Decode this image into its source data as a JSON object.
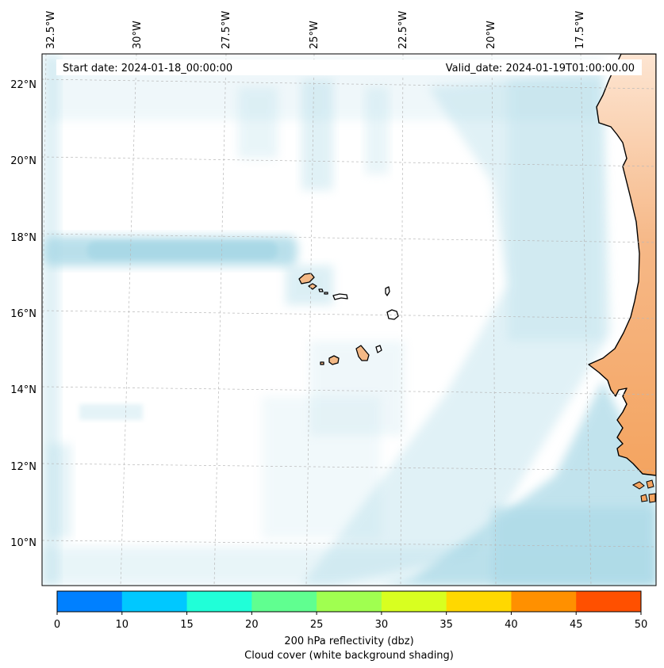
{
  "header": {
    "start_date": "Start date: 2024-01-18_00:00:00",
    "valid_date": "Valid_date: 2024-01-19T01:00:00.00"
  },
  "axes": {
    "lon_labels": [
      "32.5°W",
      "30°W",
      "27.5°W",
      "25°W",
      "22.5°W",
      "20°W",
      "17.5°W"
    ],
    "lat_labels": [
      "22°N",
      "20°N",
      "18°N",
      "16°N",
      "14°N",
      "12°N",
      "10°N"
    ]
  },
  "colorbar": {
    "ticks": [
      "0",
      "10",
      "15",
      "20",
      "25",
      "30",
      "35",
      "40",
      "45",
      "50"
    ],
    "colors": [
      "#0080ff",
      "#00c8ff",
      "#20ffd8",
      "#60ff90",
      "#a0ff50",
      "#d8ff20",
      "#ffd800",
      "#ff9000",
      "#ff5000"
    ],
    "label_line1": "200 hPa reflectivity (dbz)",
    "label_line2": "Cloud cover (white background shading)"
  },
  "colors": {
    "cloud": "#a8d8e6",
    "land": "#f4a460",
    "coast": "#000000",
    "grid": "#c0c0c0"
  }
}
